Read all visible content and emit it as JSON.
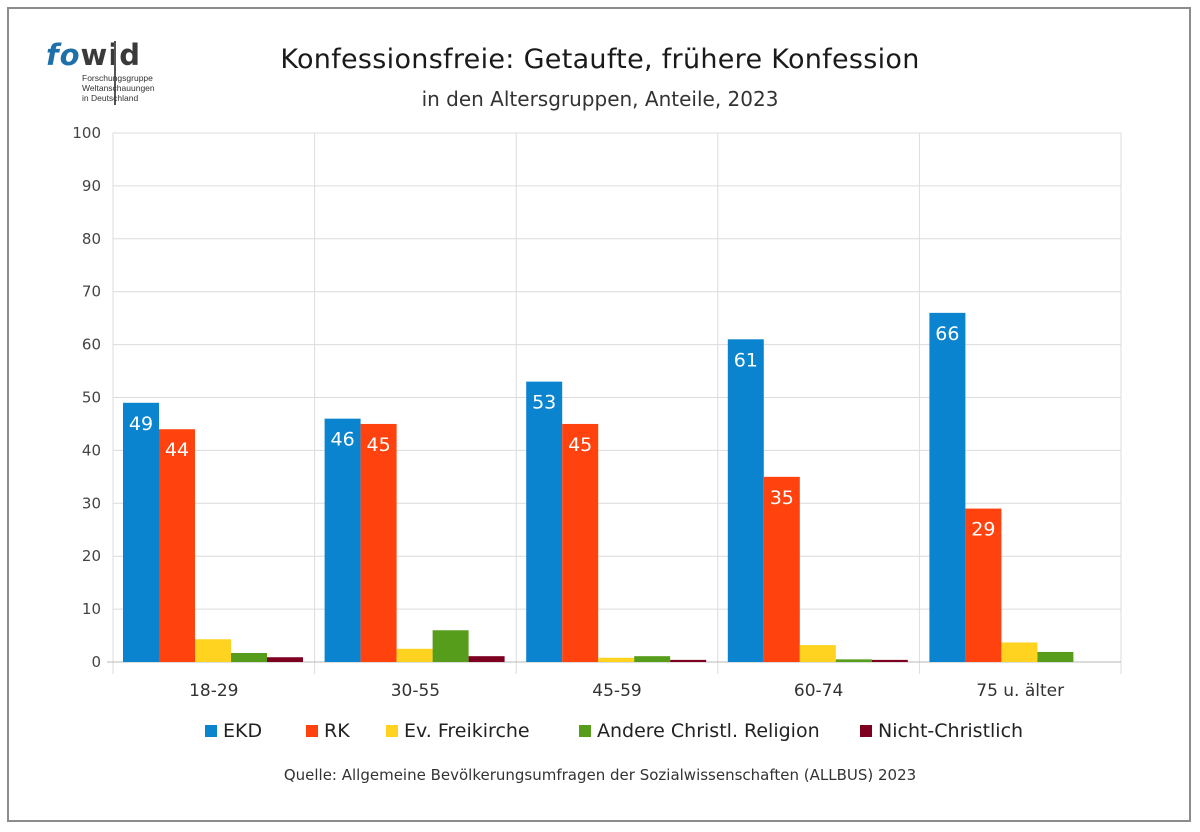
{
  "logo": {
    "word_fo": "fo",
    "word_wid": "wid",
    "subtitle_lines": [
      "Forschungsgruppe",
      "Weltanschauungen",
      "in Deutschland"
    ]
  },
  "header": {
    "title": "Konfessionsfreie: Getaufte, frühere Konfession",
    "subtitle": "in den Altersgruppen, Anteile, 2023"
  },
  "footer": {
    "source": "Quelle: Allgemeine Bevölkerungsumfragen der Sozialwissenschaften (ALLBUS) 2023"
  },
  "chart_data": {
    "type": "bar",
    "title": "Konfessionsfreie: Getaufte, frühere Konfession",
    "subtitle": "in den Altersgruppen, Anteile, 2023",
    "categories": [
      "18-29",
      "30-55",
      "45-59",
      "60-74",
      "75 u. älter"
    ],
    "ylim": [
      0,
      100
    ],
    "yticks": [
      0,
      10,
      20,
      30,
      40,
      50,
      60,
      70,
      80,
      90,
      100
    ],
    "grid": true,
    "legend_position": "bottom",
    "series": [
      {
        "name": "EKD",
        "color": "#0a84cf",
        "values": [
          49,
          46,
          53,
          61,
          66
        ],
        "labels": [
          "49",
          "46",
          "53",
          "61",
          "66"
        ]
      },
      {
        "name": "RK",
        "color": "#ff420e",
        "values": [
          44,
          45,
          45,
          35,
          29
        ],
        "labels": [
          "44",
          "45",
          "45",
          "35",
          "29"
        ]
      },
      {
        "name": "Ev. Freikirche",
        "color": "#ffd320",
        "values": [
          4.3,
          2.5,
          0.8,
          3.2,
          3.7
        ],
        "labels": [
          "",
          "",
          "",
          "",
          ""
        ]
      },
      {
        "name": "Andere Christl. Religion",
        "color": "#579d1c",
        "values": [
          1.7,
          6,
          1.1,
          0.5,
          1.9
        ],
        "labels": [
          "",
          "",
          "",
          "",
          ""
        ]
      },
      {
        "name": "Nicht-Christlich",
        "color": "#7e0021",
        "values": [
          0.9,
          1.1,
          0.4,
          0.4,
          0
        ],
        "labels": [
          "",
          "",
          "",
          "",
          ""
        ]
      }
    ]
  }
}
